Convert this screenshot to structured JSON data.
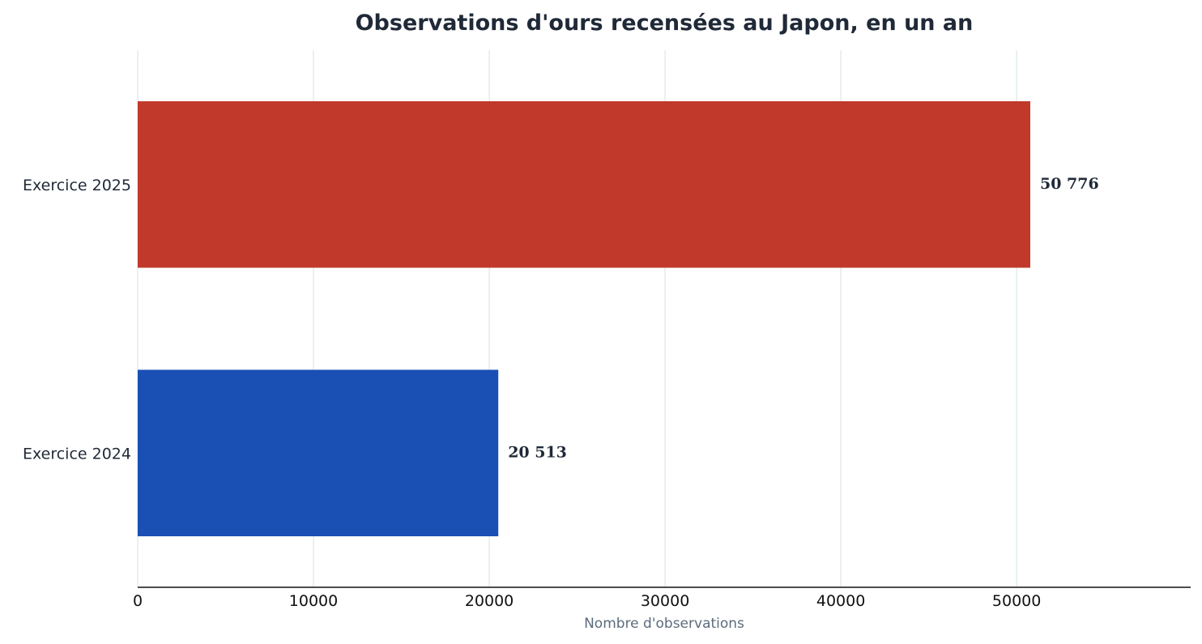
{
  "chart_data": {
    "type": "bar",
    "orientation": "horizontal",
    "title": "Observations d'ours recensées au Japon, en un an",
    "xlabel": "Nombre d'observations",
    "ylabel": "",
    "categories": [
      "Exercice 2025",
      "Exercice 2024"
    ],
    "values": [
      50776,
      20513
    ],
    "value_labels": [
      "50 776",
      "20 513"
    ],
    "bar_colors": [
      "#c0392b",
      "#1a4fb3"
    ],
    "xlim": [
      0,
      59900
    ],
    "xticks": [
      0,
      10000,
      20000,
      30000,
      40000,
      50000
    ],
    "xtick_labels": [
      "0",
      "10000",
      "20000",
      "30000",
      "40000",
      "50000"
    ],
    "grid": "vertical",
    "legend": "none"
  }
}
